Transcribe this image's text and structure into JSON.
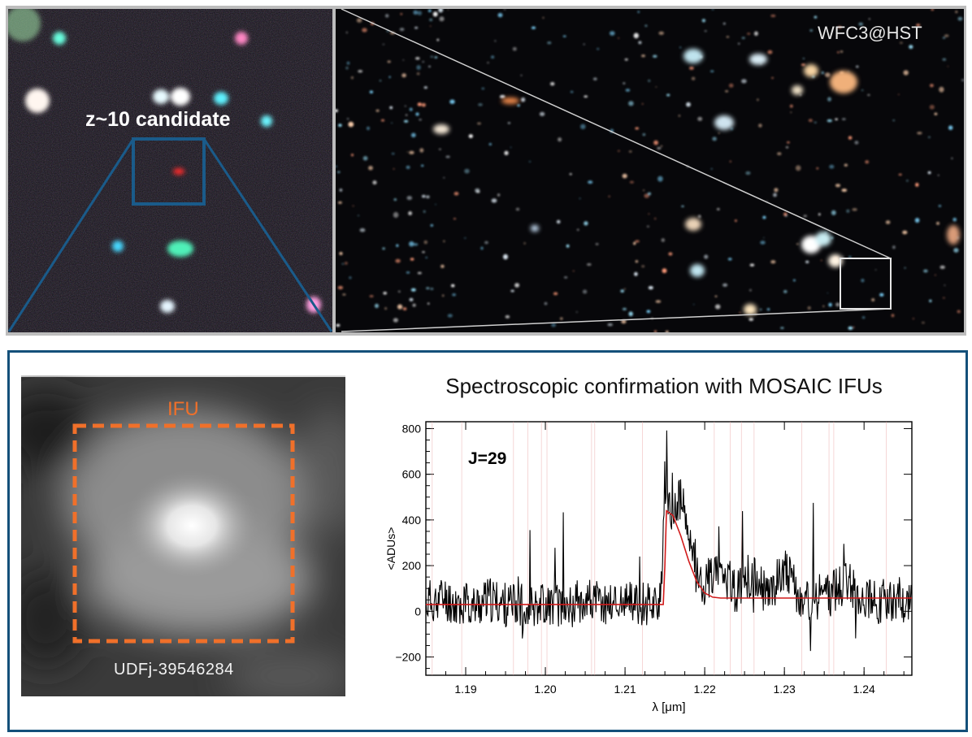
{
  "top": {
    "zoom_label": "z~10 candidate",
    "instrument_label": "WFC3@HST"
  },
  "ifu": {
    "label": "IFU",
    "object_name": "UDFj-39546284"
  },
  "spectrum": {
    "title": "Spectroscopic confirmation with MOSAIC IFUs",
    "magnitude_label": "J=29"
  },
  "chart_data": {
    "type": "line",
    "title": "Spectroscopic confirmation with MOSAIC IFUs",
    "xlabel": "λ [μm]",
    "ylabel": "<ADUs>",
    "xlim": [
      1.185,
      1.246
    ],
    "ylim": [
      -280,
      830
    ],
    "x_ticks": [
      "1.19",
      "1.20",
      "1.21",
      "1.22",
      "1.23",
      "1.24"
    ],
    "y_ticks": [
      "−200",
      "0",
      "200",
      "400",
      "600",
      "800"
    ],
    "annotation": "J=29",
    "series": [
      {
        "kind": "noisy-spectrum",
        "color": "#000000",
        "x": [
          1.185,
          1.187,
          1.189,
          1.191,
          1.193,
          1.195,
          1.197,
          1.199,
          1.201,
          1.203,
          1.205,
          1.207,
          1.209,
          1.211,
          1.213,
          1.2145,
          1.215,
          1.216,
          1.217,
          1.218,
          1.219,
          1.22,
          1.222,
          1.224,
          1.226,
          1.228,
          1.23,
          1.232,
          1.234,
          1.236,
          1.238,
          1.24,
          1.242,
          1.244,
          1.246
        ],
        "values": [
          40,
          60,
          30,
          20,
          50,
          30,
          10,
          40,
          30,
          20,
          60,
          30,
          40,
          30,
          40,
          50,
          460,
          420,
          500,
          320,
          160,
          120,
          200,
          80,
          150,
          60,
          200,
          40,
          60,
          80,
          120,
          70,
          40,
          60,
          40
        ]
      },
      {
        "kind": "model-fit",
        "color": "#d11a1a",
        "x": [
          1.185,
          1.2148,
          1.215,
          1.2152,
          1.216,
          1.217,
          1.218,
          1.219,
          1.22,
          1.221,
          1.222,
          1.246
        ],
        "values": [
          30,
          30,
          200,
          440,
          420,
          330,
          220,
          130,
          80,
          62,
          58,
          58
        ]
      }
    ]
  }
}
